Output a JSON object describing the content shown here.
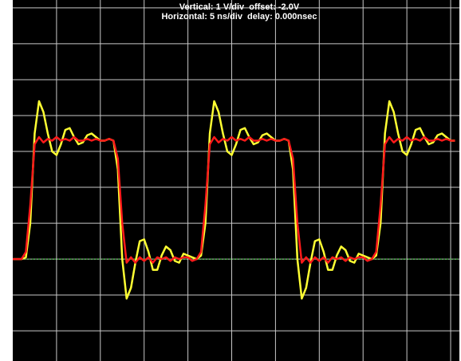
{
  "chart_data": {
    "type": "line",
    "title": "Vertical: 1 V/div  offset: -2.0V",
    "subtitle": "Horizontal: 5 ns/div  delay: 0.000nsec",
    "x": [
      0,
      0.5,
      1,
      1.5,
      2,
      2.5,
      3,
      3.5,
      4,
      4.5,
      5,
      5.5,
      6,
      6.5,
      7,
      7.5,
      8,
      8.5,
      9,
      9.5,
      10,
      10.5,
      11,
      11.5,
      12,
      12.5,
      13,
      13.5,
      14,
      14.5,
      15,
      15.5,
      16,
      16.5,
      17,
      17.5,
      18,
      18.5,
      19,
      19.5,
      20,
      20.5,
      21,
      21.5,
      22,
      22.5,
      23,
      23.5,
      24,
      24.5,
      25,
      25.5,
      26,
      26.5,
      27,
      27.5,
      28,
      28.5,
      29,
      29.5,
      30,
      30.5,
      31,
      31.5,
      32,
      32.5,
      33,
      33.5,
      34,
      34.5,
      35,
      35.5,
      36,
      36.5,
      37,
      37.5,
      38,
      38.5,
      39,
      39.5,
      40,
      40.5,
      41,
      41.5,
      42,
      42.5,
      43,
      43.5,
      44,
      44.5,
      45,
      45.5,
      46,
      46.5,
      47,
      47.5,
      48,
      48.5,
      49,
      49.5,
      50,
      50.5
    ],
    "series": [
      {
        "color": "#ffff33",
        "values": [
          0,
          0,
          0,
          0.05,
          1.0,
          3.5,
          4.4,
          4.1,
          3.5,
          3.0,
          2.9,
          3.2,
          3.6,
          3.65,
          3.4,
          3.2,
          3.25,
          3.45,
          3.5,
          3.4,
          3.3,
          3.3,
          3.35,
          3.3,
          2.5,
          0.0,
          -1.1,
          -0.8,
          -0.1,
          0.5,
          0.55,
          0.2,
          -0.3,
          -0.3,
          0.1,
          0.35,
          0.25,
          -0.05,
          -0.1,
          0.15,
          0.1,
          0.05,
          0,
          0.1,
          1.0,
          3.5,
          4.4,
          4.1,
          3.5,
          3.0,
          2.9,
          3.2,
          3.6,
          3.65,
          3.4,
          3.2,
          3.25,
          3.45,
          3.5,
          3.4,
          3.3,
          3.3,
          3.35,
          3.3,
          2.5,
          0.0,
          -1.1,
          -0.8,
          -0.1,
          0.5,
          0.55,
          0.2,
          -0.3,
          -0.3,
          0.1,
          0.35,
          0.25,
          -0.05,
          -0.1,
          0.15,
          0.1,
          0.05,
          0,
          0.1,
          1.0,
          3.5,
          4.4,
          4.1,
          3.5,
          3.0,
          2.9,
          3.2,
          3.6,
          3.65,
          3.4,
          3.2,
          3.25,
          3.45,
          3.5,
          3.4,
          3.3,
          3.3
        ]
      },
      {
        "color": "#ff1a1a",
        "values": [
          0,
          0,
          0,
          0.2,
          1.5,
          3.2,
          3.4,
          3.25,
          3.35,
          3.3,
          3.4,
          3.3,
          3.35,
          3.3,
          3.4,
          3.3,
          3.3,
          3.35,
          3.3,
          3.35,
          3.3,
          3.3,
          3.35,
          3.3,
          2.8,
          1.0,
          -0.1,
          0.05,
          -0.1,
          0.05,
          -0.05,
          0.05,
          -0.1,
          0.05,
          0,
          0.05,
          -0.05,
          0.05,
          0,
          0.05,
          0.05,
          -0.05,
          0,
          0.2,
          1.5,
          3.2,
          3.4,
          3.25,
          3.35,
          3.3,
          3.4,
          3.3,
          3.35,
          3.3,
          3.4,
          3.3,
          3.3,
          3.35,
          3.3,
          3.35,
          3.3,
          3.3,
          3.35,
          3.3,
          2.8,
          1.0,
          -0.1,
          0.05,
          -0.1,
          0.05,
          -0.05,
          0.05,
          -0.1,
          0.05,
          0,
          0.05,
          -0.05,
          0.05,
          0,
          0.05,
          0.05,
          -0.05,
          0,
          0.2,
          1.5,
          3.2,
          3.4,
          3.25,
          3.35,
          3.3,
          3.4,
          3.3,
          3.35,
          3.3,
          3.4,
          3.3,
          3.3,
          3.35,
          3.3,
          3.35,
          3.3,
          3.3
        ]
      }
    ],
    "xlim": [
      0,
      51
    ],
    "ylim": [
      -2.84,
      7.22
    ],
    "xticks": [
      5,
      10,
      15,
      20,
      25,
      30,
      35,
      40,
      45,
      50
    ],
    "yticks": [
      -2,
      -1,
      0,
      1,
      2,
      3,
      4,
      5,
      6,
      7
    ],
    "grid": true,
    "grid_color": "#c8c8c8",
    "background": "#000000",
    "reference_level": 0,
    "reference_color": "#33cc33"
  }
}
